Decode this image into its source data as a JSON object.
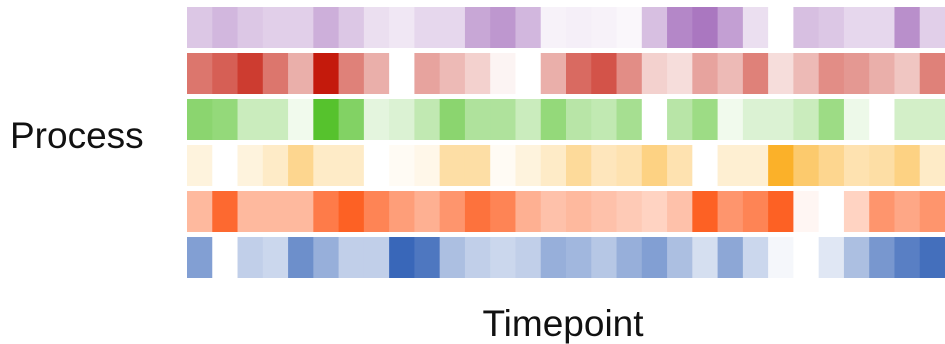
{
  "chart_data": {
    "type": "heatmap",
    "xlabel": "Timepoint",
    "ylabel": "Process",
    "legend": "none",
    "grid": false,
    "rows": [
      {
        "color": "#9b5fb5",
        "values": [
          0.35,
          0.45,
          0.35,
          0.3,
          0.3,
          0.5,
          0.35,
          0.2,
          0.15,
          0.25,
          0.25,
          0.55,
          0.65,
          0.45,
          0.08,
          0.1,
          0.08,
          0.05,
          0.4,
          0.75,
          0.85,
          0.6,
          0.2,
          0,
          0.4,
          0.35,
          0.25,
          0.25,
          0.7,
          0.3
        ]
      },
      {
        "color": "#c41a0c",
        "values": [
          0.6,
          0.7,
          0.85,
          0.6,
          0.35,
          1.0,
          0.55,
          0.35,
          0,
          0.4,
          0.3,
          0.2,
          0.05,
          0,
          0.35,
          0.65,
          0.75,
          0.5,
          0.2,
          0.15,
          0.4,
          0.3,
          0.55,
          0.15,
          0.3,
          0.5,
          0.45,
          0.35,
          0.25,
          0.55
        ]
      },
      {
        "color": "#4dbf22",
        "values": [
          0.65,
          0.6,
          0.3,
          0.3,
          0.08,
          0.95,
          0.7,
          0.15,
          0.2,
          0.35,
          0.65,
          0.45,
          0.45,
          0.3,
          0.6,
          0.4,
          0.35,
          0.5,
          0,
          0.4,
          0.55,
          0.08,
          0.2,
          0.2,
          0.3,
          0.55,
          0.1,
          0,
          0.25,
          0.25
        ]
      },
      {
        "color": "#fbad1e",
        "values": [
          0.15,
          0,
          0.15,
          0.25,
          0.5,
          0.25,
          0.25,
          0,
          0.05,
          0.1,
          0.4,
          0.4,
          0.05,
          0.15,
          0.25,
          0.45,
          0.3,
          0.35,
          0.55,
          0.35,
          0,
          0.2,
          0.2,
          0.95,
          0.65,
          0.5,
          0.35,
          0.4,
          0.55,
          0.25
        ]
      },
      {
        "color": "#fd4f0c",
        "values": [
          0.4,
          0.85,
          0.4,
          0.4,
          0.4,
          0.75,
          0.9,
          0.7,
          0.55,
          0.45,
          0.6,
          0.8,
          0.7,
          0.45,
          0.35,
          0.4,
          0.35,
          0.3,
          0.25,
          0.35,
          0.9,
          0.6,
          0.7,
          0.9,
          0.05,
          0,
          0.25,
          0.6,
          0.5,
          0.6
        ]
      },
      {
        "color": "#2f5fb5",
        "values": [
          0.6,
          0,
          0.3,
          0.25,
          0.7,
          0.5,
          0.3,
          0.3,
          0.95,
          0.85,
          0.4,
          0.3,
          0.25,
          0.3,
          0.5,
          0.45,
          0.35,
          0.5,
          0.6,
          0.4,
          0.2,
          0.55,
          0.25,
          0.05,
          0,
          0.15,
          0.4,
          0.65,
          0.8,
          0.9
        ]
      }
    ]
  }
}
